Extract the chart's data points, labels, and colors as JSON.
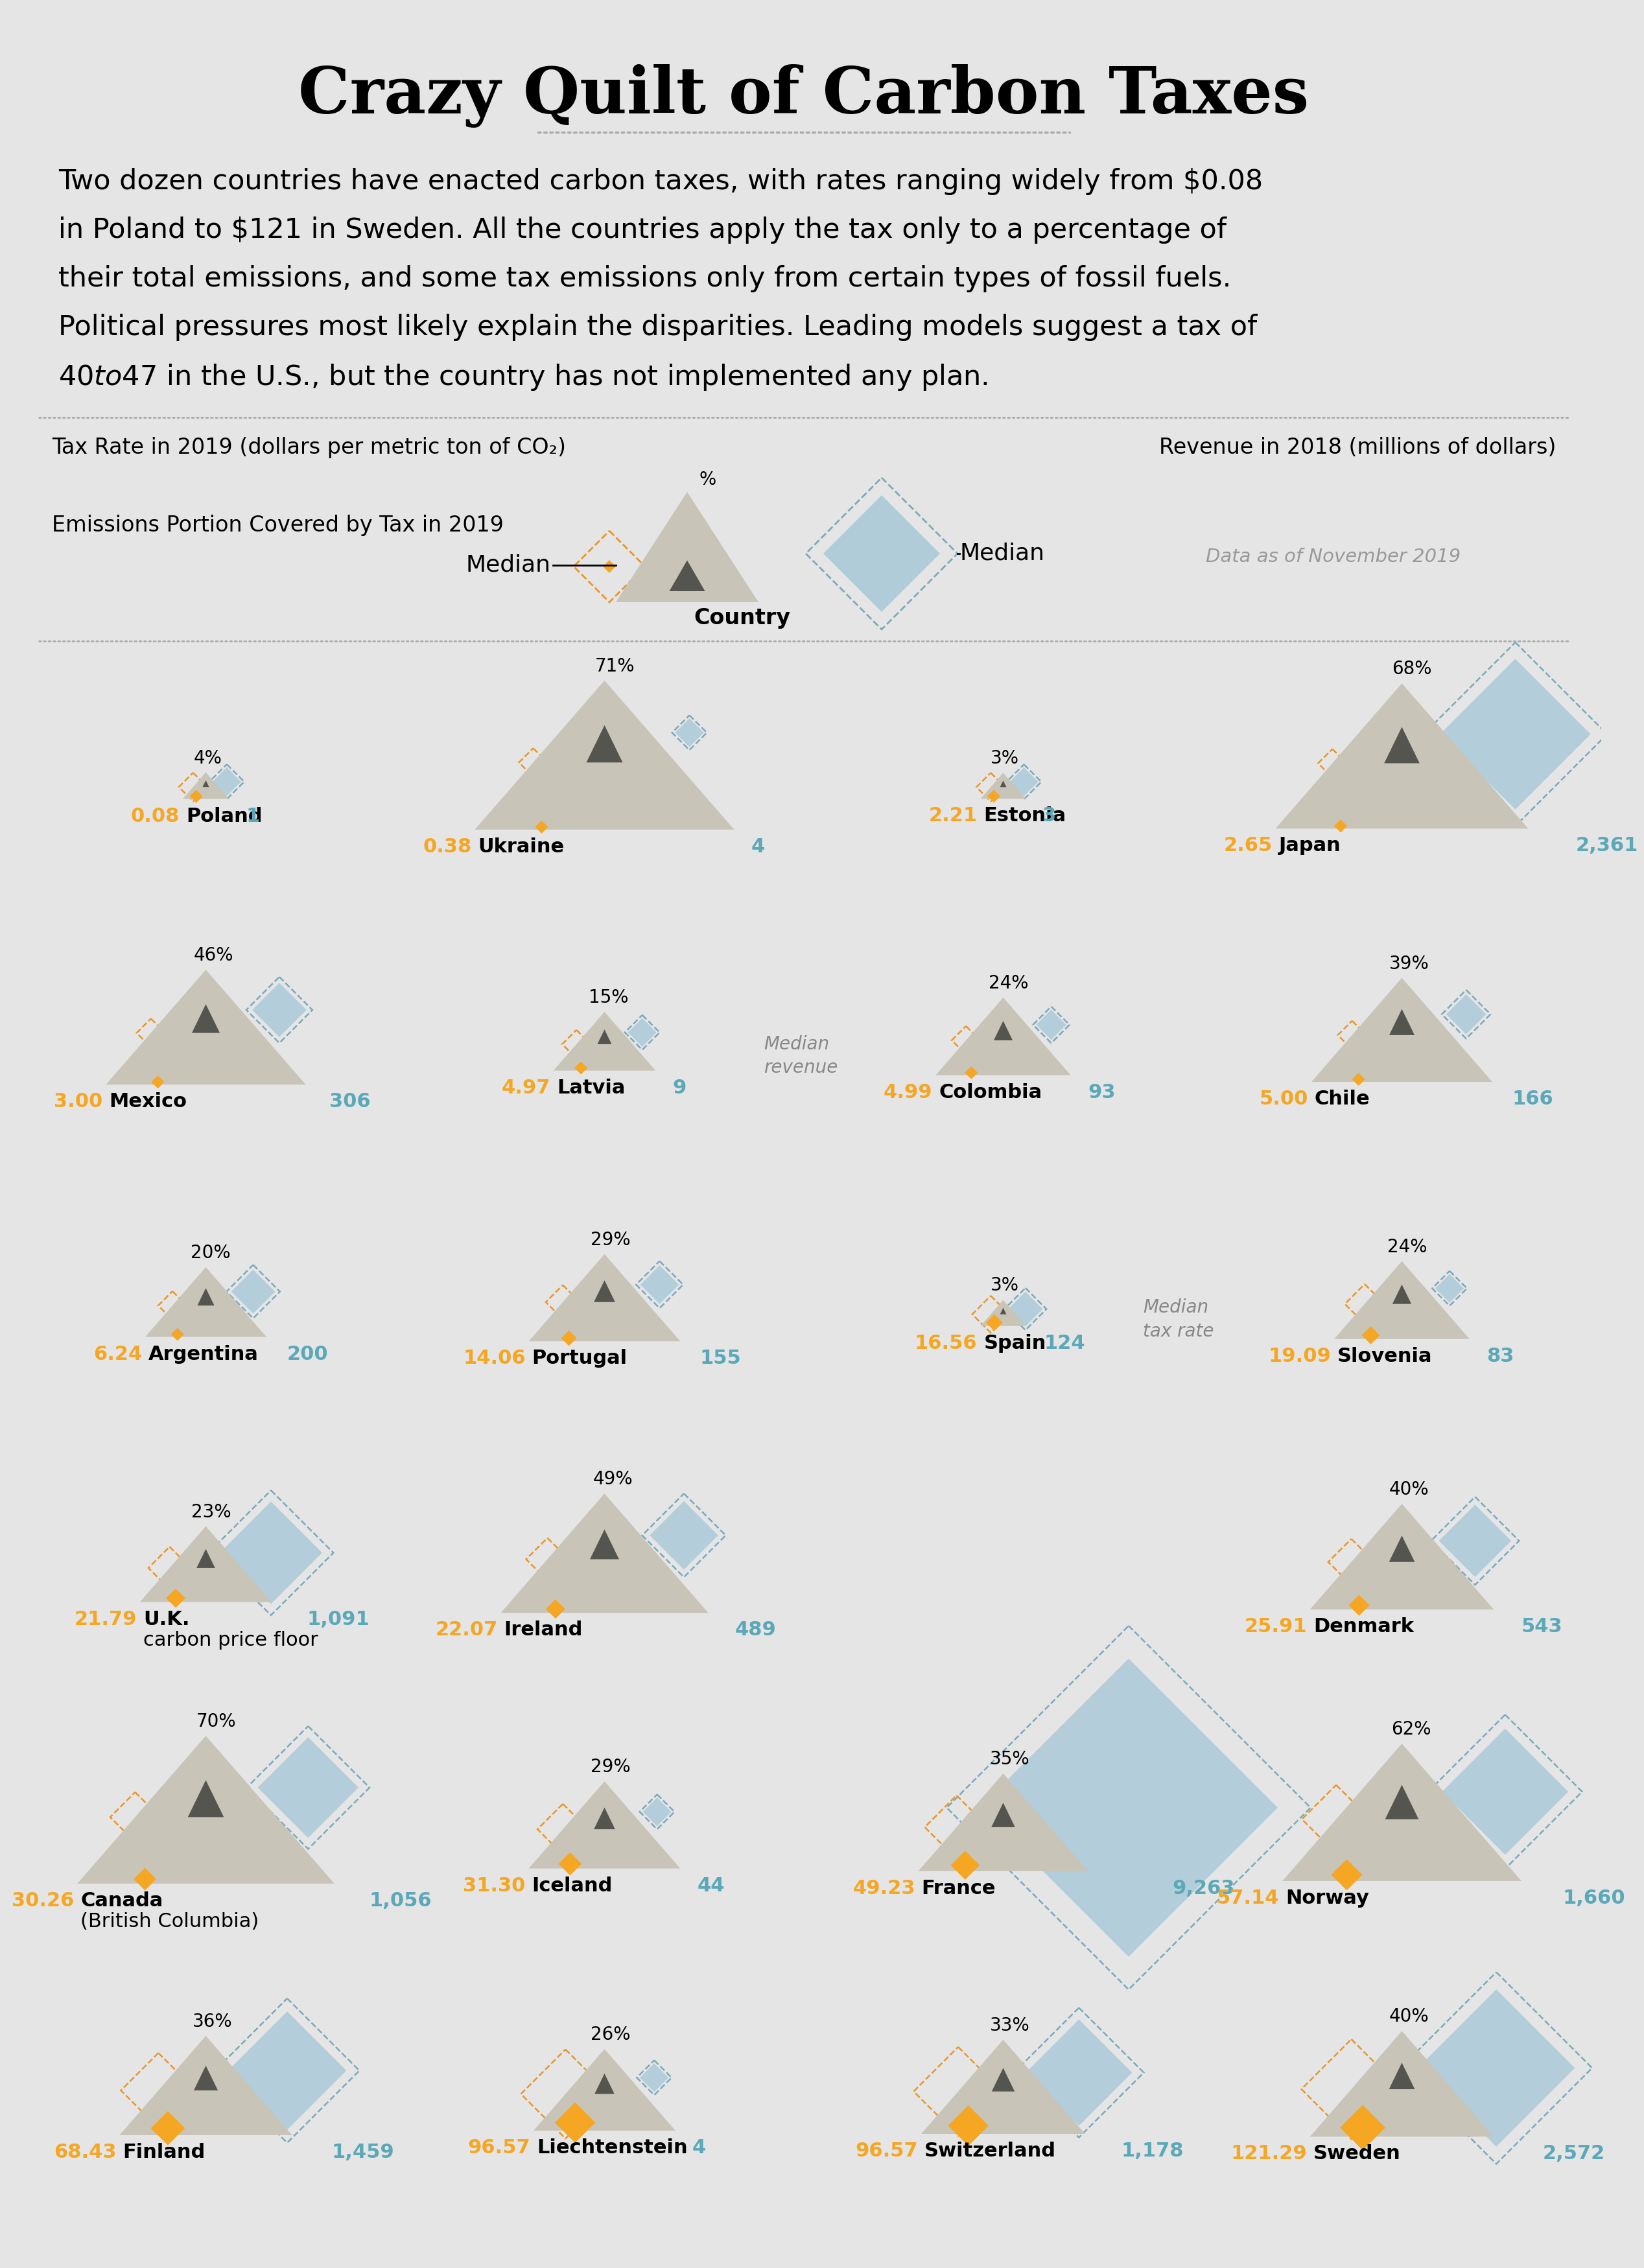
{
  "title": "Crazy Quilt of Carbon Taxes",
  "subtitle_line1": "Two dozen countries have enacted carbon taxes, with rates ranging widely from $0.08",
  "subtitle_line2": "in Poland to $121 in Sweden. All the countries apply the tax only to a percentage of",
  "subtitle_line3": "their total emissions, and some tax emissions only from certain types of fossil fuels.",
  "subtitle_line4": "Political pressures most likely explain the disparities. Leading models suggest a tax of",
  "subtitle_line5": "$40 to $47 in the U.S., but the country has not implemented any plan.",
  "legend_left_label": "Tax Rate in 2019 (dollars per metric ton of CO₂)",
  "legend_right_label": "Revenue in 2018 (millions of dollars)",
  "legend_emissions_label": "Emissions Portion Covered by Tax in 2019",
  "legend_data_note": "Data as of November 2019",
  "bg_color": "#E5E5E5",
  "orange_color": "#F5A623",
  "blue_color": "#A8C8D8",
  "tri_color": "#C8C4B8",
  "tri_dark": "#555550",
  "cyan_color": "#5BA8B8",
  "median_tax": 5.0,
  "median_revenue": 166,
  "countries": [
    {
      "name": "Poland",
      "name2": "",
      "tax": 0.08,
      "revenue": 1,
      "pct": 4,
      "col": 0,
      "row": 0
    },
    {
      "name": "Ukraine",
      "name2": "",
      "tax": 0.38,
      "revenue": 4,
      "pct": 71,
      "col": 1,
      "row": 0
    },
    {
      "name": "Estonia",
      "name2": "",
      "tax": 2.21,
      "revenue": 3,
      "pct": 3,
      "col": 2,
      "row": 0
    },
    {
      "name": "Japan",
      "name2": "",
      "tax": 2.65,
      "revenue": 2361,
      "pct": 68,
      "col": 3,
      "row": 0
    },
    {
      "name": "Mexico",
      "name2": "",
      "tax": 3.0,
      "revenue": 306,
      "pct": 46,
      "col": 0,
      "row": 1
    },
    {
      "name": "Latvia",
      "name2": "",
      "tax": 4.97,
      "revenue": 9,
      "pct": 15,
      "col": 1,
      "row": 1
    },
    {
      "name": "Colombia",
      "name2": "",
      "tax": 4.99,
      "revenue": 93,
      "pct": 24,
      "col": 2,
      "row": 1
    },
    {
      "name": "Chile",
      "name2": "",
      "tax": 5.0,
      "revenue": 166,
      "pct": 39,
      "col": 3,
      "row": 1
    },
    {
      "name": "Argentina",
      "name2": "",
      "tax": 6.24,
      "revenue": 200,
      "pct": 20,
      "col": 0,
      "row": 2
    },
    {
      "name": "Portugal",
      "name2": "",
      "tax": 14.06,
      "revenue": 155,
      "pct": 29,
      "col": 1,
      "row": 2
    },
    {
      "name": "Spain",
      "name2": "",
      "tax": 16.56,
      "revenue": 124,
      "pct": 3,
      "col": 2,
      "row": 2
    },
    {
      "name": "Slovenia",
      "name2": "",
      "tax": 19.09,
      "revenue": 83,
      "pct": 24,
      "col": 3,
      "row": 2
    },
    {
      "name": "U.K.",
      "name2": "carbon price floor",
      "tax": 21.79,
      "revenue": 1091,
      "pct": 23,
      "col": 0,
      "row": 3
    },
    {
      "name": "Ireland",
      "name2": "",
      "tax": 22.07,
      "revenue": 489,
      "pct": 49,
      "col": 1,
      "row": 3
    },
    {
      "name": "Denmark",
      "name2": "",
      "tax": 25.91,
      "revenue": 543,
      "pct": 40,
      "col": 3,
      "row": 3
    },
    {
      "name": "Canada",
      "name2": "(British Columbia)",
      "tax": 30.26,
      "revenue": 1056,
      "pct": 70,
      "col": 0,
      "row": 4
    },
    {
      "name": "Iceland",
      "name2": "",
      "tax": 31.3,
      "revenue": 44,
      "pct": 29,
      "col": 1,
      "row": 4
    },
    {
      "name": "France",
      "name2": "",
      "tax": 49.23,
      "revenue": 9263,
      "pct": 35,
      "col": 2,
      "row": 4
    },
    {
      "name": "Norway",
      "name2": "",
      "tax": 57.14,
      "revenue": 1660,
      "pct": 62,
      "col": 3,
      "row": 4
    },
    {
      "name": "Finland",
      "name2": "",
      "tax": 68.43,
      "revenue": 1459,
      "pct": 36,
      "col": 0,
      "row": 5
    },
    {
      "name": "Liechtenstein",
      "name2": "",
      "tax": 96.57,
      "revenue": 4,
      "pct": 26,
      "col": 1,
      "row": 5
    },
    {
      "name": "Switzerland",
      "name2": "",
      "tax": 96.57,
      "revenue": 1178,
      "pct": 33,
      "col": 2,
      "row": 5
    },
    {
      "name": "Sweden",
      "name2": "",
      "tax": 121.29,
      "revenue": 2572,
      "pct": 40,
      "col": 3,
      "row": 5
    }
  ]
}
